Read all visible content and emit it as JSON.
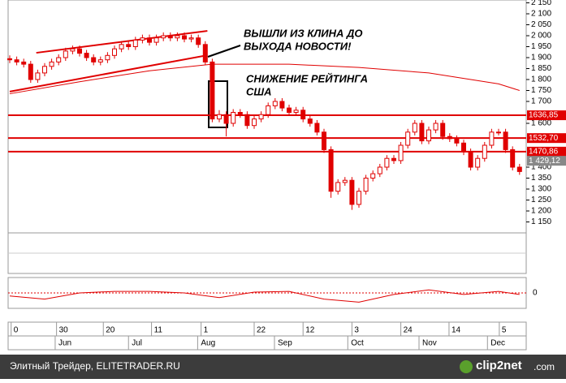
{
  "chart_data": {
    "type": "candlestick",
    "open": [
      1895,
      1890,
      1880,
      1870,
      1800,
      1830,
      1860,
      1880,
      1900,
      1930,
      1940,
      1920,
      1900,
      1880,
      1890,
      1910,
      1940,
      1960,
      1950,
      1980,
      1990,
      1970,
      1990,
      2000,
      1990,
      2000,
      1985,
      1990,
      1960,
      1880,
      1620,
      1640,
      1600,
      1650,
      1640,
      1590,
      1620,
      1640,
      1680,
      1700,
      1670,
      1650,
      1660,
      1620,
      1600,
      1560,
      1480,
      1290,
      1330,
      1340,
      1230,
      1290,
      1350,
      1370,
      1400,
      1440,
      1430,
      1500,
      1560,
      1600,
      1520,
      1570,
      1600,
      1540,
      1530,
      1510,
      1470,
      1400,
      1440,
      1500,
      1560,
      1560,
      1480,
      1400
    ],
    "high": [
      1910,
      1905,
      1895,
      1885,
      1845,
      1875,
      1895,
      1915,
      1945,
      1955,
      1955,
      1935,
      1915,
      1905,
      1925,
      1955,
      1975,
      1975,
      1995,
      2005,
      2005,
      2005,
      2015,
      2015,
      2015,
      2015,
      2005,
      2005,
      1975,
      1895,
      1660,
      1655,
      1665,
      1665,
      1655,
      1635,
      1655,
      1695,
      1715,
      1715,
      1685,
      1675,
      1675,
      1635,
      1615,
      1575,
      1495,
      1345,
      1355,
      1355,
      1305,
      1365,
      1385,
      1415,
      1455,
      1455,
      1515,
      1575,
      1615,
      1615,
      1585,
      1615,
      1615,
      1555,
      1545,
      1525,
      1485,
      1455,
      1515,
      1575,
      1575,
      1575,
      1495,
      1415
    ],
    "low": [
      1875,
      1865,
      1855,
      1785,
      1785,
      1815,
      1845,
      1865,
      1885,
      1915,
      1905,
      1885,
      1865,
      1865,
      1875,
      1895,
      1925,
      1935,
      1935,
      1965,
      1955,
      1955,
      1975,
      1975,
      1975,
      1970,
      1970,
      1945,
      1865,
      1605,
      1605,
      1540,
      1585,
      1625,
      1575,
      1575,
      1605,
      1625,
      1665,
      1655,
      1635,
      1635,
      1605,
      1585,
      1545,
      1465,
      1260,
      1275,
      1315,
      1205,
      1215,
      1275,
      1335,
      1355,
      1385,
      1415,
      1415,
      1485,
      1545,
      1505,
      1505,
      1555,
      1525,
      1515,
      1495,
      1455,
      1385,
      1385,
      1425,
      1485,
      1545,
      1465,
      1385,
      1365
    ],
    "close": [
      1890,
      1880,
      1870,
      1800,
      1830,
      1860,
      1880,
      1900,
      1930,
      1940,
      1920,
      1900,
      1880,
      1890,
      1910,
      1940,
      1960,
      1950,
      1980,
      1990,
      1970,
      1990,
      2000,
      1990,
      2000,
      1985,
      1990,
      1960,
      1880,
      1620,
      1640,
      1600,
      1650,
      1640,
      1590,
      1620,
      1640,
      1680,
      1700,
      1670,
      1650,
      1660,
      1620,
      1600,
      1560,
      1480,
      1290,
      1330,
      1340,
      1230,
      1290,
      1350,
      1370,
      1400,
      1440,
      1430,
      1500,
      1560,
      1600,
      1520,
      1570,
      1600,
      1540,
      1530,
      1510,
      1470,
      1400,
      1440,
      1500,
      1560,
      1560,
      1480,
      1400,
      1380
    ],
    "color": "#e00000",
    "ylim": [
      1100,
      2163
    ],
    "yticks": [
      {
        "value": 2150,
        "label": "2 150"
      },
      {
        "value": 2100,
        "label": "2 100"
      },
      {
        "value": 2050,
        "label": "2 050"
      },
      {
        "value": 2000,
        "label": "2 000"
      },
      {
        "value": 1950,
        "label": "1 950"
      },
      {
        "value": 1900,
        "label": "1 900"
      },
      {
        "value": 1850,
        "label": "1 850"
      },
      {
        "value": 1800,
        "label": "1 800"
      },
      {
        "value": 1750,
        "label": "1 750"
      },
      {
        "value": 1700,
        "label": "1 700"
      },
      {
        "value": 1600,
        "label": "1 600"
      },
      {
        "value": 1400,
        "label": "1 400"
      },
      {
        "value": 1350,
        "label": "1 350"
      },
      {
        "value": 1300,
        "label": "1 300"
      },
      {
        "value": 1250,
        "label": "1 250"
      },
      {
        "value": 1200,
        "label": "1 200"
      },
      {
        "value": 1150,
        "label": "1 150"
      }
    ],
    "xticks": [
      {
        "value": 0.2,
        "label": "0"
      },
      {
        "value": 6.7,
        "label": "30"
      },
      {
        "value": 13.4,
        "label": "20"
      },
      {
        "value": 20.3,
        "label": "11"
      },
      {
        "value": 27.4,
        "label": "1"
      },
      {
        "value": 35,
        "label": "22"
      },
      {
        "value": 42,
        "label": "12"
      },
      {
        "value": 49,
        "label": "3"
      },
      {
        "value": 56,
        "label": "24"
      },
      {
        "value": 62.9,
        "label": "14"
      },
      {
        "value": 70.1,
        "label": "5"
      }
    ],
    "months": [
      {
        "value": 7.9,
        "label": "Jun"
      },
      {
        "value": 18.4,
        "label": "Jul"
      },
      {
        "value": 28.3,
        "label": "Aug"
      },
      {
        "value": 39.3,
        "label": "Sep"
      },
      {
        "value": 49.8,
        "label": "Oct"
      },
      {
        "value": 60,
        "label": "Nov"
      },
      {
        "value": 69.8,
        "label": "Dec"
      }
    ],
    "ma": {
      "x": [
        0,
        10,
        20,
        29,
        40,
        50,
        60,
        70,
        73
      ],
      "values": [
        1735,
        1790,
        1840,
        1870,
        1870,
        1855,
        1830,
        1780,
        1750
      ]
    },
    "trendlines": [
      {
        "x": [
          3.8,
          28.3
        ],
        "values": [
          1922,
          2022
        ]
      },
      {
        "x": [
          0,
          28.3
        ],
        "values": [
          1745,
          1911
        ]
      }
    ],
    "levels": [
      {
        "value": 1636.85,
        "label": "1636,85"
      },
      {
        "value": 1532.7,
        "label": "1532,70"
      },
      {
        "value": 1470.86,
        "label": "1470,86"
      }
    ],
    "last": {
      "value": 1429.12,
      "label": "1 429,12"
    },
    "annotations": [
      [
        "ВЫШЛИ ИЗ КЛИНА ДО",
        "ВЫХОДА НОВОСТИ!"
      ],
      [
        "СНИЖЕНИЕ РЕЙТИНГА",
        "США"
      ]
    ],
    "oscillator": {
      "ylim": [
        -1,
        1
      ],
      "yticks": [
        0
      ],
      "x": [
        0,
        5,
        10,
        15,
        20,
        25,
        30,
        35,
        40,
        45,
        50,
        55,
        60,
        65,
        70,
        73
      ],
      "values": [
        -0.2,
        -0.4,
        0,
        0.1,
        0.1,
        0,
        -0.3,
        0.05,
        0.1,
        -0.4,
        -0.6,
        -0.1,
        0.2,
        -0.1,
        0.1,
        -0.1
      ]
    }
  },
  "footer": {
    "text": "Элитный Трейдер, ELITETRADER.RU",
    "logo": "clip2net",
    "logo_suffix": ".com"
  }
}
